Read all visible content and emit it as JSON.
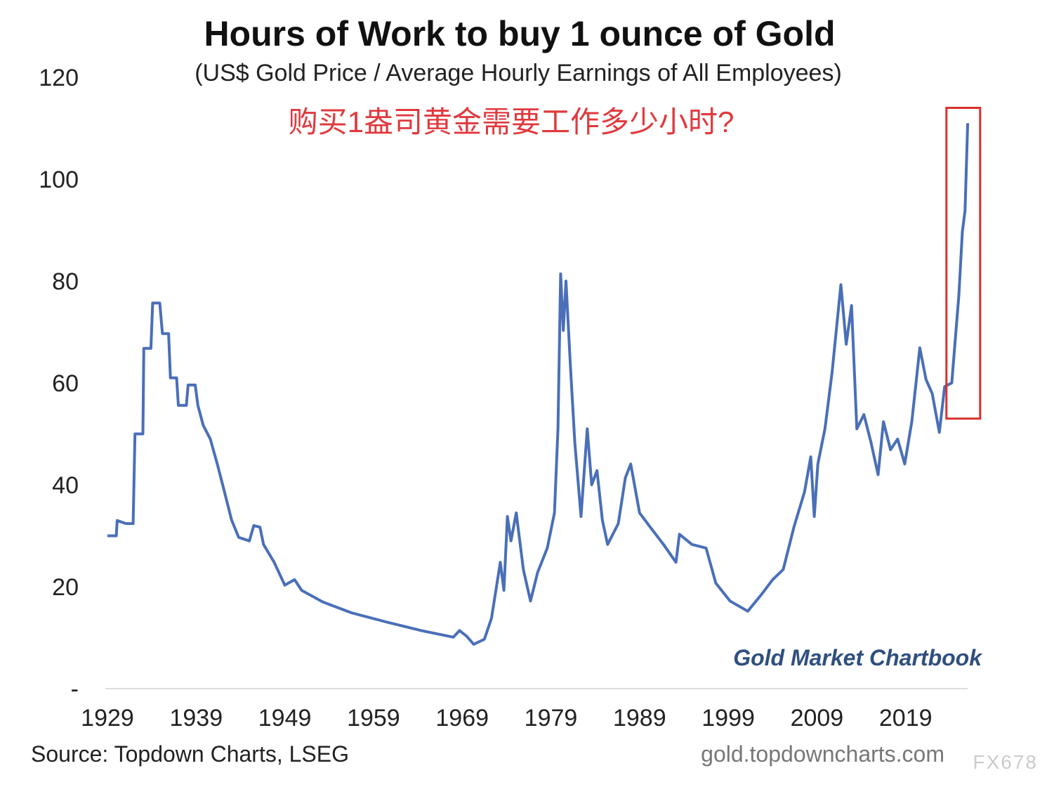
{
  "chart_data": {
    "type": "line",
    "title": "Hours of Work to buy 1 ounce of Gold",
    "subtitle": "(US$ Gold Price / Average Hourly Earnings of All Employees)",
    "annotation_cn": "购买1盎司黄金需要工作多少小时?",
    "brand": "Gold Market Chartbook",
    "source": "Source: Topdown Charts, LSEG",
    "url": "gold.topdowncharts.com",
    "watermark": "FX678",
    "xlim": [
      1929,
      2027
    ],
    "ylim": [
      0,
      120
    ],
    "x_ticks": [
      "1929",
      "1939",
      "1949",
      "1959",
      "1969",
      "1979",
      "1989",
      "1999",
      "2009",
      "2019"
    ],
    "y_ticks": [
      "120",
      "100",
      "80",
      "60",
      "40",
      "20",
      "-"
    ],
    "y_tick_values": [
      120,
      100,
      80,
      60,
      40,
      20,
      0
    ],
    "grid": false,
    "line_color": "#4a6fb8",
    "highlight_box": {
      "x": [
        2023.6,
        2027.4
      ],
      "y": [
        53,
        114
      ],
      "color": "#d9302c"
    },
    "series": [
      {
        "x": [
          1929,
          1930,
          1930.1,
          1931.1,
          1931.9,
          1932.1,
          1933,
          1933.1,
          1933.9,
          1934.1,
          1934.9,
          1935.2,
          1935.9,
          1936.1,
          1936.8,
          1937,
          1937.9,
          1938.1,
          1938.9,
          1939.2,
          1939.8,
          1940.6,
          1941.4,
          1942.2,
          1943,
          1943.8,
          1945,
          1945.5,
          1946.2,
          1946.6,
          1947.8,
          1949,
          1950.1,
          1950.9,
          1953.3,
          1956.5,
          1960.4,
          1964.4,
          1968,
          1968.7,
          1969.5,
          1970.3,
          1971.5,
          1972.3,
          1973.3,
          1973.7,
          1974.1,
          1974.5,
          1975.1,
          1975.9,
          1976.7,
          1977.5,
          1978.6,
          1979.4,
          1979.8,
          1980.1,
          1980.4,
          1980.7,
          1981.2,
          1981.7,
          1982.4,
          1983.1,
          1983.6,
          1984.2,
          1984.8,
          1985.4,
          1986.6,
          1987.4,
          1988,
          1989,
          1990.2,
          1991.7,
          1993.1,
          1993.5,
          1994.9,
          1996.5,
          1997.6,
          1999.2,
          2001.2,
          2002.8,
          2004,
          2005.2,
          2006.4,
          2007.6,
          2008.3,
          2008.7,
          2009.1,
          2009.9,
          2010.7,
          2011.7,
          2012.3,
          2012.9,
          2013.5,
          2014.3,
          2015.1,
          2015.9,
          2016.5,
          2017.3,
          2018.1,
          2018.9,
          2019.7,
          2020.6,
          2021.3,
          2022,
          2022.8,
          2023.4,
          2024.2,
          2025,
          2025.4,
          2025.7,
          2026
        ],
        "y": [
          30,
          30,
          33,
          32.4,
          32.4,
          50,
          50,
          66.8,
          66.8,
          75.7,
          75.7,
          69.7,
          69.7,
          61,
          61,
          55.6,
          55.6,
          59.6,
          59.6,
          55.6,
          51.7,
          49,
          44,
          38.6,
          33.1,
          29.7,
          29,
          32,
          31.7,
          28.3,
          24.8,
          20.3,
          21.4,
          19.3,
          17,
          14.9,
          13.1,
          11.4,
          10.1,
          11.4,
          10.3,
          8.7,
          9.7,
          13.8,
          24.8,
          19.3,
          33.8,
          29,
          34.5,
          23.4,
          17.2,
          22.8,
          27.6,
          34.5,
          51,
          81.4,
          70.3,
          80,
          63.4,
          48.3,
          33.8,
          51,
          40,
          42.8,
          33.1,
          28.3,
          32.4,
          41.4,
          44.1,
          34.5,
          31.7,
          28.3,
          24.8,
          30.3,
          28.3,
          27.6,
          20.7,
          17.2,
          15.2,
          18.6,
          21.4,
          23.4,
          31.7,
          38.6,
          45.5,
          33.8,
          44.1,
          51,
          62,
          79.3,
          67.6,
          75.2,
          51,
          53.8,
          48.3,
          42,
          52.4,
          46.9,
          49,
          44.1,
          52.4,
          66.9,
          60.7,
          57.9,
          50.3,
          59.3,
          60,
          77.2,
          89.7,
          93.8,
          111
        ]
      }
    ]
  }
}
